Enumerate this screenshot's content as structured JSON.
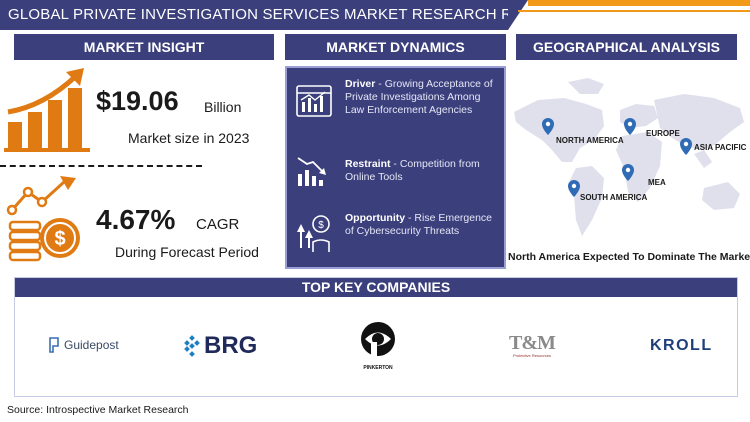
{
  "header": {
    "title": "GLOBAL PRIVATE INVESTIGATION SERVICES MARKET RESEARCH REPORT"
  },
  "sections": {
    "insight": "MARKET INSIGHT",
    "dynamics": "MARKET DYNAMICS",
    "geo": "GEOGRAPHICAL ANALYSIS",
    "companies": "TOP KEY COMPANIES"
  },
  "insight": {
    "market_size_value": "$19.06",
    "market_size_unit": "Billion",
    "market_size_caption": "Market size in 2023",
    "cagr_value": "4.67%",
    "cagr_unit": "CAGR",
    "cagr_caption": "During Forecast Period"
  },
  "dynamics": [
    {
      "label": "Driver",
      "text": " - Growing Acceptance of Private Investigations Among Law Enforcement Agencies",
      "icon": "chart-icon"
    },
    {
      "label": "Restraint",
      "text": " - Competition from Online Tools",
      "icon": "decline-icon"
    },
    {
      "label": "Opportunity",
      "text": " - Rise Emergence of Cybersecurity Threats",
      "icon": "growth-hand-icon"
    }
  ],
  "geo": {
    "regions": [
      "NORTH AMERICA",
      "EUROPE",
      "ASIA PACIFIC",
      "MEA",
      "SOUTH AMERICA"
    ],
    "caption": "North America Expected To Dominate The Market"
  },
  "companies": [
    {
      "name": "Guidepost"
    },
    {
      "name": "BRG"
    },
    {
      "name": "PINKERTON"
    },
    {
      "name": "T&M",
      "sub": "Protective Resources"
    },
    {
      "name": "KROLL"
    }
  ],
  "source": "Source: Introspective Market Research",
  "colors": {
    "navy": "#3b3f7c",
    "orange": "#e07b14",
    "accent": "#f29a17"
  }
}
